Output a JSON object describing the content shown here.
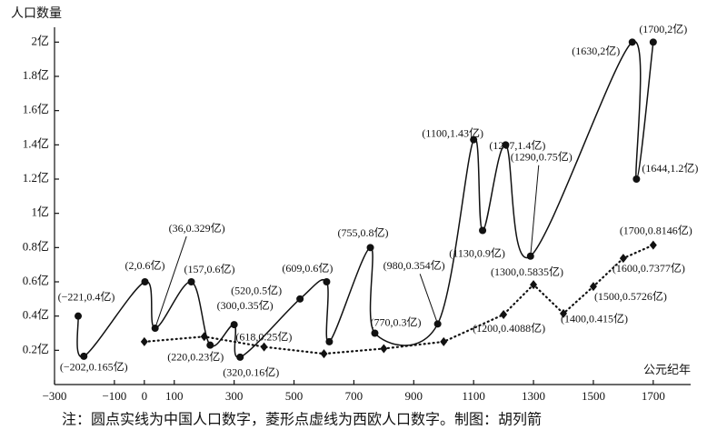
{
  "chart_data": {
    "type": "line",
    "y_axis_title": "人口数量",
    "x_axis_label": "公元纪年",
    "note": "注：圆点实线为中国人口数字，菱形点虚线为西欧人口数字。制图：胡列箭",
    "xlim": [
      -300,
      1825
    ],
    "ylim": [
      0,
      2.1
    ],
    "xticks": [
      {
        "value": -300,
        "label": "−300"
      },
      {
        "value": -100,
        "label": "−100"
      },
      0,
      100,
      300,
      500,
      700,
      900,
      1100,
      1300,
      1500,
      1700
    ],
    "yticks": [
      {
        "value": 0.2,
        "label": "0.2亿"
      },
      {
        "value": 0.4,
        "label": "0.4亿"
      },
      {
        "value": 0.6,
        "label": "0.6亿"
      },
      {
        "value": 0.8,
        "label": "0.8亿"
      },
      {
        "value": 1,
        "label": "1亿"
      },
      {
        "value": 1.2,
        "label": "1.2亿"
      },
      {
        "value": 1.4,
        "label": "1.4亿"
      },
      {
        "value": 1.6,
        "label": "1.6亿"
      },
      {
        "value": 1.8,
        "label": "1.8亿"
      },
      {
        "value": 2,
        "label": "2亿"
      }
    ],
    "series": [
      {
        "name": "中国",
        "color": "#111111",
        "marker": "circle",
        "line": "solid",
        "x": [
          -221,
          -202,
          2,
          36,
          157,
          220,
          300,
          320,
          520,
          609,
          618,
          755,
          770,
          980,
          1100,
          1130,
          1207,
          1290,
          1630,
          1644,
          1700
        ],
        "values": [
          0.4,
          0.165,
          0.6,
          0.329,
          0.6,
          0.23,
          0.35,
          0.16,
          0.5,
          0.6,
          0.25,
          0.8,
          0.3,
          0.354,
          1.43,
          0.9,
          1.4,
          0.75,
          2,
          1.2,
          2
        ],
        "value_labels": [
          "(−221,0.4亿)",
          "(−202,0.165亿)",
          "(2,0.6亿)",
          "(36,0.329亿)",
          "(157,0.6亿)",
          "(220,0.23亿)",
          "(300,0.35亿)",
          "(320,0.16亿)",
          "(520,0.5亿)",
          "(609,0.6亿)",
          "(618,0.25亿)",
          "(755,0.8亿)",
          "(770,0.3亿)",
          "(980,0.354亿)",
          "(1100,1.43亿)",
          "(1130,0.9亿)",
          "(1207,1.4亿)",
          "(1290,0.75亿)",
          "(1630,2亿)",
          "(1644,1.2亿)",
          "(1700,2亿)"
        ]
      },
      {
        "name": "西欧",
        "color": "#111111",
        "marker": "diamond",
        "line": "dotted",
        "x": [
          0,
          200,
          400,
          600,
          800,
          1000,
          1200,
          1300,
          1400,
          1500,
          1600,
          1700
        ],
        "values": [
          0.25,
          0.28,
          0.22,
          0.18,
          0.21,
          0.25,
          0.4088,
          0.5835,
          0.415,
          0.5726,
          0.7377,
          0.8146
        ],
        "value_labels": [
          null,
          null,
          null,
          null,
          null,
          null,
          "(1200,0.4088亿)",
          "(1300,0.5835亿)",
          "(1400,0.415亿)",
          "(1500,0.5726亿)",
          "(1600,0.7377亿)",
          "(1700,0.8146亿)"
        ]
      }
    ]
  }
}
